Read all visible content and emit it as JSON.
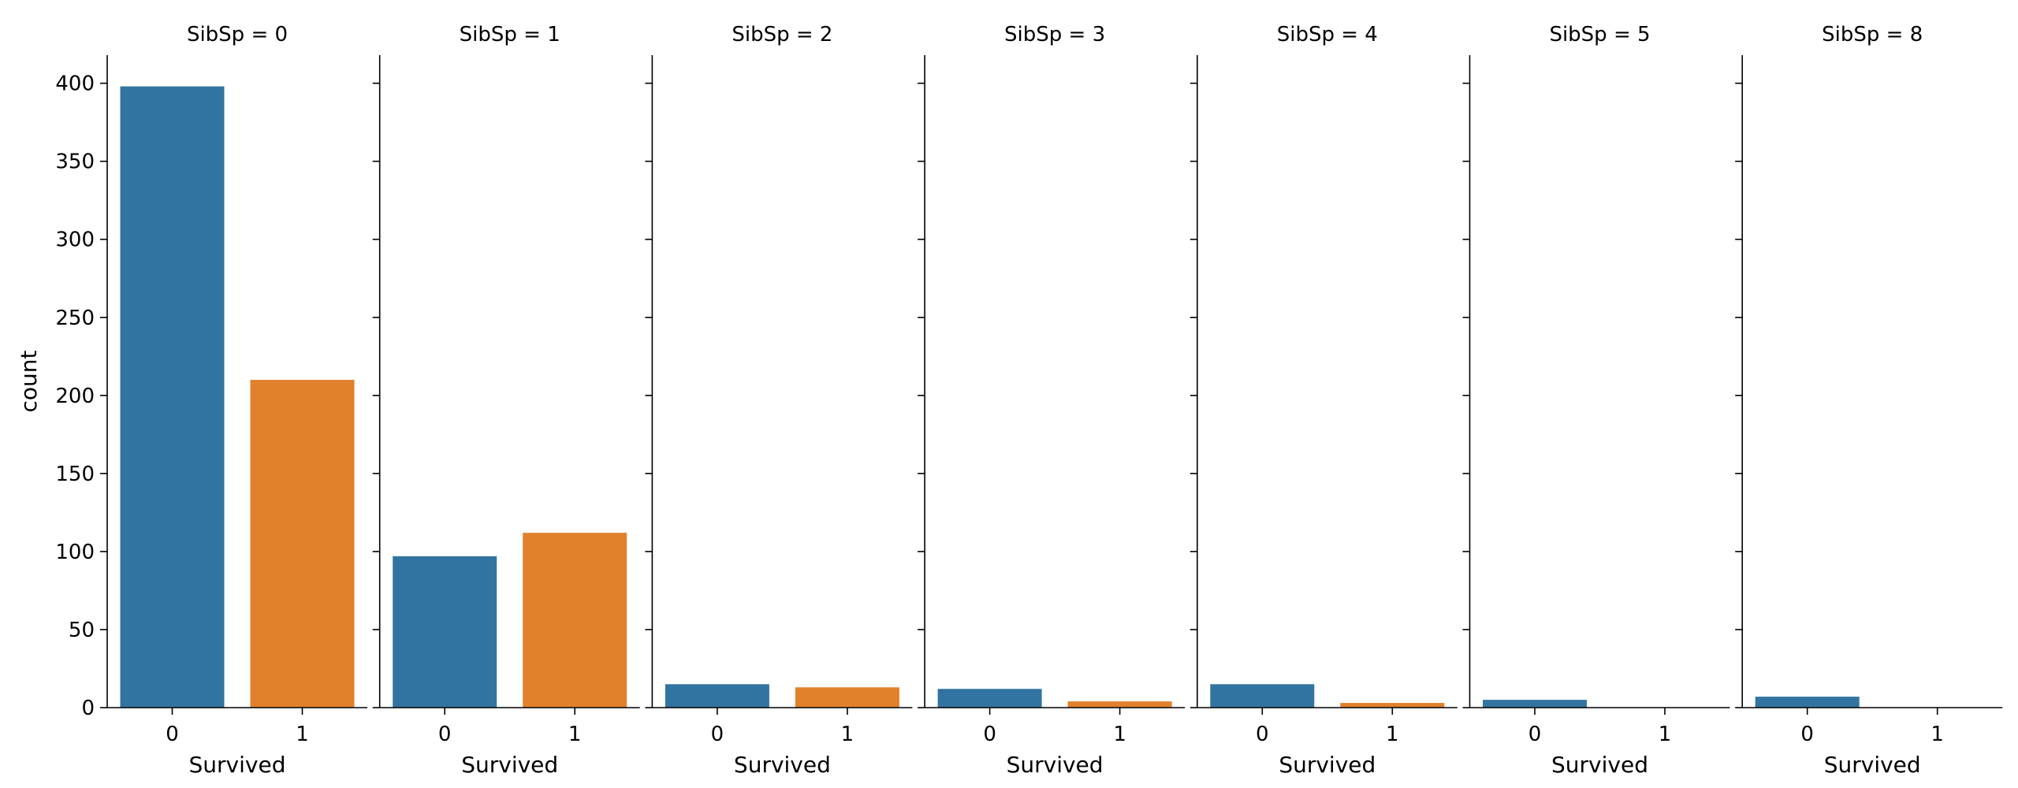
{
  "chart_data": {
    "type": "bar",
    "layout": "facet-columns",
    "facet_variable": "SibSp",
    "facets": [
      {
        "title": "SibSp = 0",
        "values": [
          398,
          210
        ]
      },
      {
        "title": "SibSp = 1",
        "values": [
          97,
          112
        ]
      },
      {
        "title": "SibSp = 2",
        "values": [
          15,
          13
        ]
      },
      {
        "title": "SibSp = 3",
        "values": [
          12,
          4
        ]
      },
      {
        "title": "SibSp = 4",
        "values": [
          15,
          3
        ]
      },
      {
        "title": "SibSp = 5",
        "values": [
          5,
          0
        ]
      },
      {
        "title": "SibSp = 8",
        "values": [
          7,
          0
        ]
      }
    ],
    "categories": [
      "0",
      "1"
    ],
    "xlabel": "Survived",
    "ylabel": "count",
    "ylim": [
      0,
      418
    ],
    "yticks": [
      0,
      50,
      100,
      150,
      200,
      250,
      300,
      350,
      400
    ],
    "colors": [
      "#3274a1",
      "#e1812c"
    ],
    "grid": false,
    "shared_y": true
  }
}
